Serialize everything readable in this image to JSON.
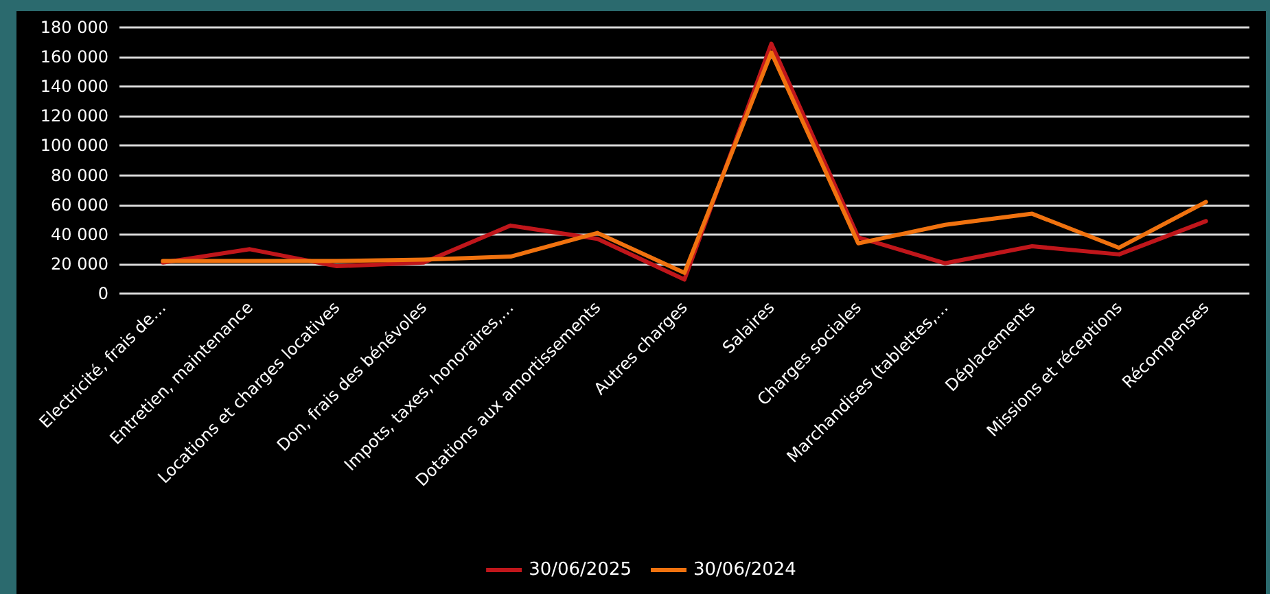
{
  "chart_data": {
    "type": "line",
    "categories": [
      "Electricité, frais de…",
      "Entretien, maintenance",
      "Locations et charges locatives",
      "Don, frais des bénévoles",
      "Impots, taxes, honoraires,…",
      "Dotations aux amortissements",
      "Autres charges",
      "Salaires",
      "Charges sociales",
      "Marchandises (tablettes,…",
      "Déplacements",
      "Missions et réceptions",
      "Récompenses"
    ],
    "series": [
      {
        "name": "30/06/2025",
        "color": "#c0161b",
        "values": [
          21000,
          30000,
          18500,
          21000,
          46000,
          37000,
          9500,
          169000,
          38000,
          20500,
          32000,
          26500,
          49000
        ]
      },
      {
        "name": "30/06/2024",
        "color": "#f0720f",
        "values": [
          22000,
          22000,
          22000,
          23000,
          25000,
          41000,
          14000,
          163000,
          34000,
          46500,
          54000,
          31000,
          62000
        ]
      }
    ],
    "ylim": [
      0,
      180000
    ],
    "yticks": [
      0,
      20000,
      40000,
      60000,
      80000,
      100000,
      120000,
      140000,
      160000,
      180000
    ],
    "grid": "y",
    "legend": "bottom",
    "marker": "none",
    "line_style": "solid"
  }
}
